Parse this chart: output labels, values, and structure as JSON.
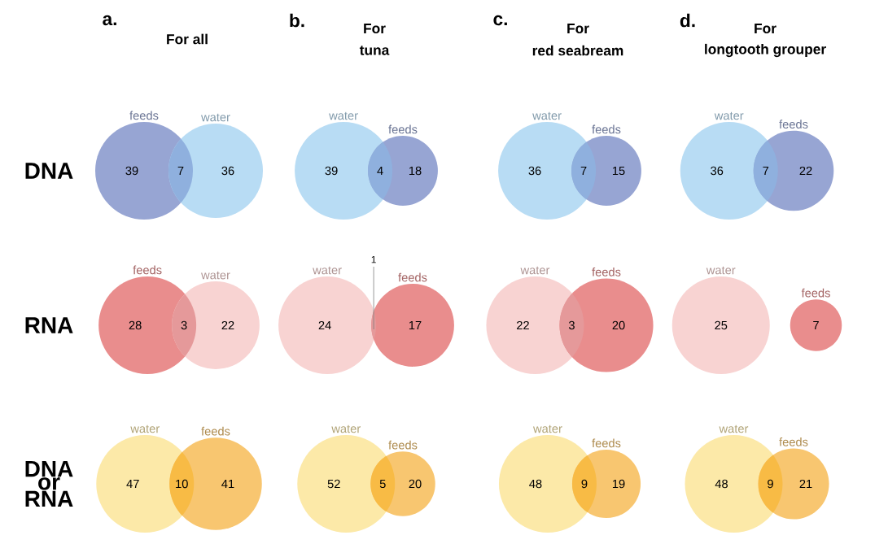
{
  "chart_data": [
    {
      "type": "other",
      "data_labels": true,
      "title": "For all",
      "annotations": [
        "a."
      ],
      "ylabel": "DNA",
      "categories": [
        "feeds",
        null,
        "water"
      ],
      "values": [
        39,
        7,
        36
      ],
      "colors": [
        "#97a5d3",
        "#8fb0de",
        "#b8dcf4"
      ]
    },
    {
      "type": "other",
      "data_labels": true,
      "title": "For",
      "subtitle": "tuna",
      "annotations": [
        "b."
      ],
      "categories": [
        "water",
        null,
        "feeds"
      ],
      "values": [
        39,
        4,
        18
      ],
      "colors": [
        "#b8dcf4",
        "#8fb0de",
        "#97a5d3"
      ]
    },
    {
      "type": "other",
      "data_labels": true,
      "title": "For",
      "subtitle": "red seabream",
      "annotations": [
        "c."
      ],
      "categories": [
        "water",
        null,
        "feeds"
      ],
      "values": [
        36,
        7,
        15
      ],
      "colors": [
        "#b8dcf4",
        "#8fb0de",
        "#97a5d3"
      ]
    },
    {
      "type": "other",
      "data_labels": true,
      "title": "For",
      "subtitle": "longtooth grouper",
      "annotations": [
        "d."
      ],
      "categories": [
        "water",
        null,
        "feeds"
      ],
      "values": [
        36,
        7,
        22
      ],
      "colors": [
        "#b8dcf4",
        "#8fb0de",
        "#97a5d3"
      ]
    },
    {
      "type": "other",
      "data_labels": true,
      "ylabel": "RNA",
      "categories": [
        "feeds",
        null,
        "water"
      ],
      "values": [
        28,
        3,
        22
      ],
      "colors": [
        "#e98d8d",
        "#e5999a",
        "#f8d3d2"
      ]
    },
    {
      "type": "other",
      "data_labels": true,
      "categories": [
        "water",
        null,
        "feeds"
      ],
      "values": [
        24,
        1,
        17
      ],
      "colors": [
        "#f8d3d2",
        "#e5999a",
        "#e98d8d"
      ]
    },
    {
      "type": "other",
      "data_labels": true,
      "categories": [
        "water",
        null,
        "feeds"
      ],
      "values": [
        22,
        3,
        20
      ],
      "colors": [
        "#f8d3d2",
        "#e5999a",
        "#e98d8d"
      ]
    },
    {
      "type": "other",
      "data_labels": true,
      "categories": [
        "water",
        null,
        "feeds"
      ],
      "values": [
        25,
        null,
        7
      ],
      "colors": [
        "#f8d3d2",
        "#e5999a",
        "#e98d8d"
      ]
    },
    {
      "type": "other",
      "data_labels": true,
      "ylabel": "DNA or RNA",
      "categories": [
        "water",
        null,
        "feeds"
      ],
      "values": [
        47,
        10,
        41
      ],
      "colors": [
        "#fce9a8",
        "#f8bb45",
        "#f8c670"
      ]
    },
    {
      "type": "other",
      "data_labels": true,
      "categories": [
        "water",
        null,
        "feeds"
      ],
      "values": [
        52,
        5,
        20
      ],
      "colors": [
        "#fce9a8",
        "#f8bb45",
        "#f8c670"
      ]
    },
    {
      "type": "other",
      "data_labels": true,
      "categories": [
        "water",
        null,
        "feeds"
      ],
      "values": [
        48,
        9,
        19
      ],
      "colors": [
        "#fce9a8",
        "#f8bb45",
        "#f8c670"
      ]
    },
    {
      "type": "other",
      "data_labels": true,
      "categories": [
        "water",
        null,
        "feeds"
      ],
      "values": [
        48,
        9,
        21
      ],
      "colors": [
        "#fce9a8",
        "#f8bb45",
        "#f8c670"
      ]
    }
  ]
}
